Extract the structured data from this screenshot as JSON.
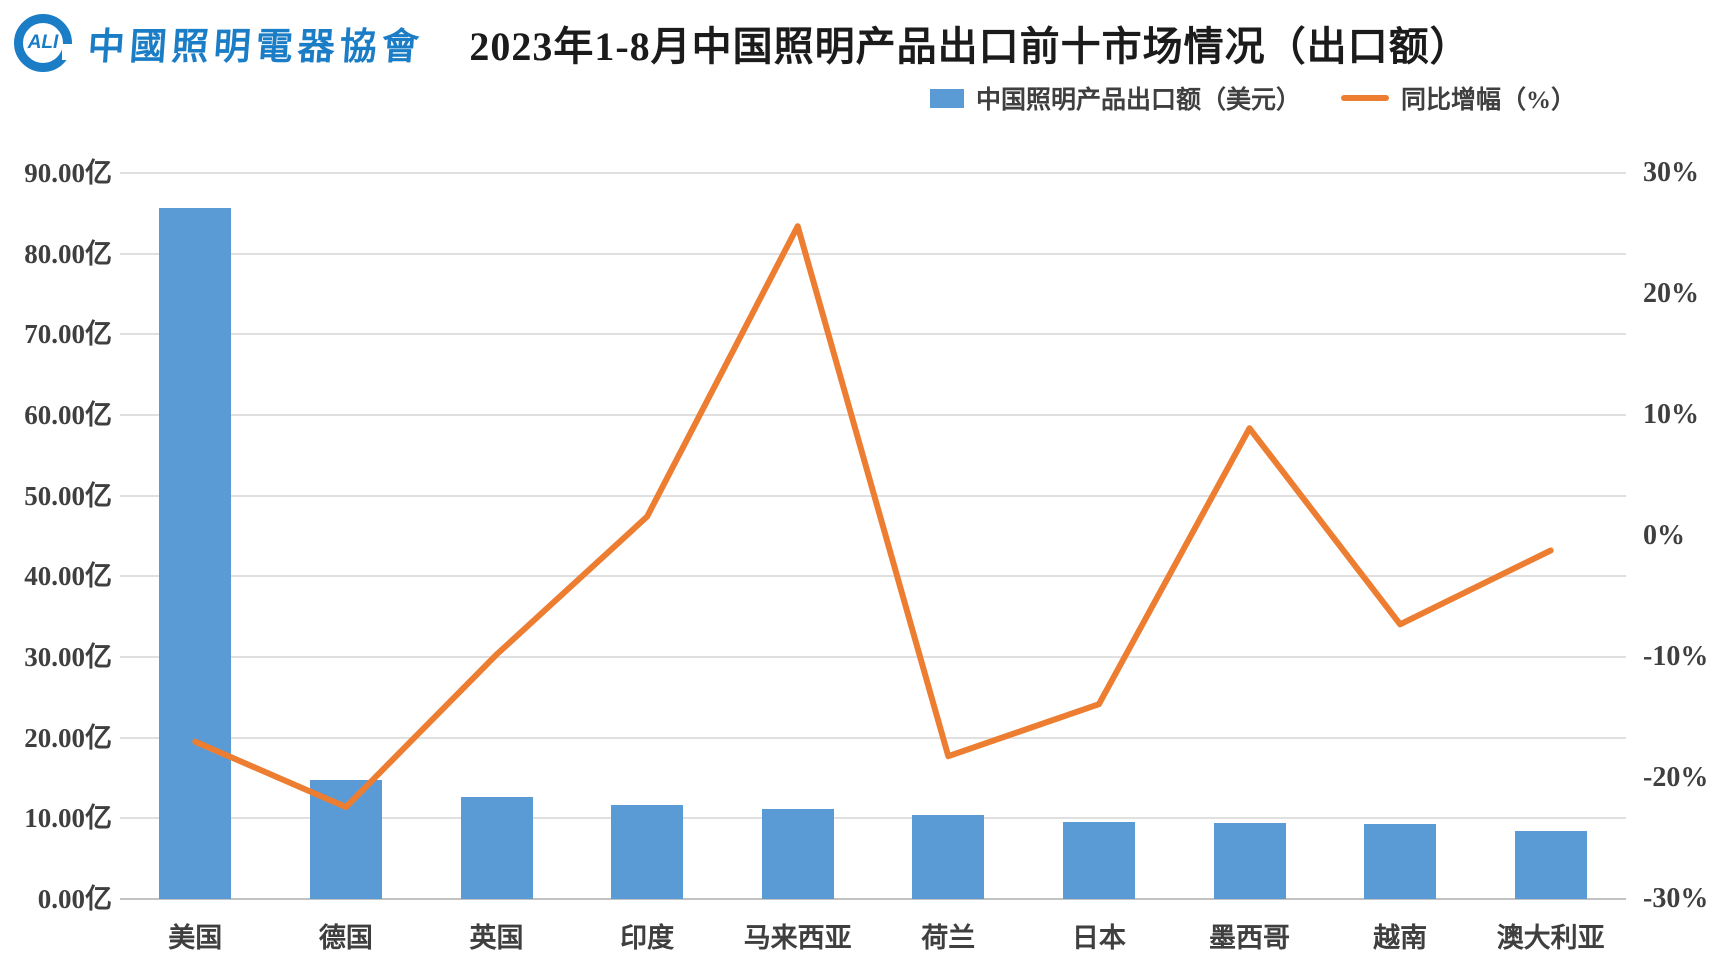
{
  "header": {
    "logo": {
      "mark_text": "ALI",
      "org_name": "中國照明電器協會",
      "color": "#1a7dc5"
    },
    "title": "2023年1-8月中国照明产品出口前十市场情况（出口额）"
  },
  "legend": {
    "bar_label": "中国照明产品出口额（美元）",
    "line_label": "同比增幅（%）",
    "bar_color": "#5B9BD5",
    "line_color": "#ED7D31"
  },
  "chart_data": {
    "type": "bar",
    "subtype": "combo-bar-line-dual-axis",
    "title": "2023年1-8月中国照明产品出口前十市场情况（出口额）",
    "categories": [
      "美国",
      "德国",
      "英国",
      "印度",
      "马来西亚",
      "荷兰",
      "日本",
      "墨西哥",
      "越南",
      "澳大利亚"
    ],
    "series": [
      {
        "name": "中国照明产品出口额（美元）",
        "chart": "bar",
        "axis": "left",
        "unit": "亿美元",
        "color": "#5B9BD5",
        "values": [
          85.7,
          14.8,
          12.7,
          11.6,
          11.2,
          10.4,
          9.5,
          9.4,
          9.3,
          8.4
        ]
      },
      {
        "name": "同比增幅（%）",
        "chart": "line",
        "axis": "right",
        "unit": "%",
        "color": "#ED7D31",
        "values": [
          -17.0,
          -22.4,
          -9.8,
          1.6,
          25.6,
          -18.2,
          -13.9,
          8.9,
          -7.3,
          -1.2
        ]
      }
    ],
    "left_axis": {
      "min": 0,
      "max": 90,
      "step": 10,
      "tick_labels": [
        "90.00亿",
        "80.00亿",
        "70.00亿",
        "60.00亿",
        "50.00亿",
        "40.00亿",
        "30.00亿",
        "20.00亿",
        "10.00亿",
        "0.00亿"
      ]
    },
    "right_axis": {
      "min": -30,
      "max": 30,
      "step": 10,
      "tick_labels": [
        "30%",
        "20%",
        "10%",
        "0%",
        "-10%",
        "-20%",
        "-30%"
      ]
    },
    "grid": "horizontal-on",
    "legend_position": "top-right"
  }
}
